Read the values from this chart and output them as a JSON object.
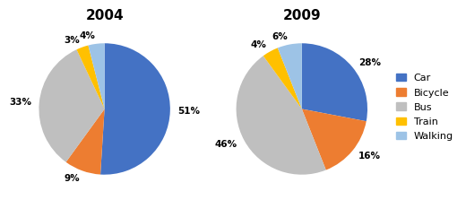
{
  "chart_2004": {
    "title": "2004",
    "values": [
      51,
      9,
      33,
      3,
      4
    ],
    "labels": [
      "51%",
      "9%",
      "33%",
      "3%",
      "4%"
    ],
    "startangle": 90
  },
  "chart_2009": {
    "title": "2009",
    "values": [
      28,
      16,
      46,
      4,
      6
    ],
    "labels": [
      "28%",
      "16%",
      "46%",
      "4%",
      "6%"
    ],
    "startangle": 90
  },
  "categories": [
    "Car",
    "Bicycle",
    "Bus",
    "Train",
    "Walking"
  ],
  "colors": [
    "#4472C4",
    "#ED7D31",
    "#BFBFBF",
    "#FFC000",
    "#9DC3E6"
  ],
  "title_fontsize": 11,
  "label_fontsize": 7.5,
  "legend_fontsize": 8,
  "background_color": "#ffffff"
}
